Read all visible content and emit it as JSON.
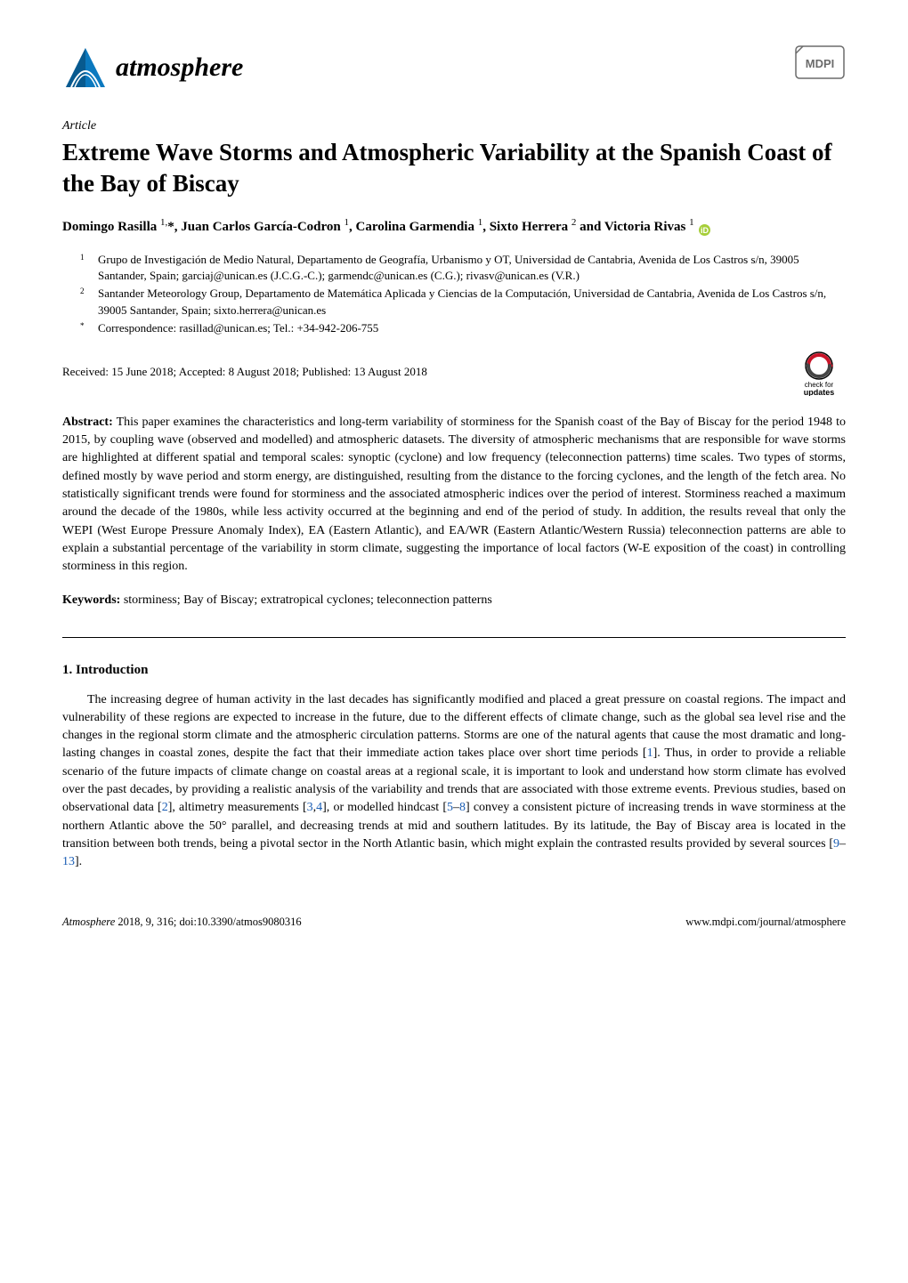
{
  "header": {
    "journal_name": "atmosphere",
    "logo_colors": {
      "blue": "#0b79bf",
      "dark": "#1a1a1a"
    },
    "mdpi_outline": "#6b6b6b"
  },
  "article": {
    "type": "Article",
    "title": "Extreme Wave Storms and Atmospheric Variability at the Spanish Coast of the Bay of Biscay",
    "authors_html": "Domingo Rasilla <sup>1,</sup>*, Juan Carlos García-Codron <sup>1</sup>, Carolina Garmendia <sup>1</sup>, Sixto Herrera <sup>2</sup> and Victoria Rivas <sup>1</sup>",
    "orcid_color": "#a6ce39",
    "affiliations": [
      {
        "num": "1",
        "text": "Grupo de Investigación de Medio Natural, Departamento de Geografía, Urbanismo y OT, Universidad de Cantabria, Avenida de Los Castros s/n, 39005 Santander, Spain; garciaj@unican.es (J.C.G.-C.); garmendc@unican.es (C.G.); rivasv@unican.es (V.R.)"
      },
      {
        "num": "2",
        "text": "Santander Meteorology Group, Departamento de Matemática Aplicada y Ciencias de la Computación, Universidad de Cantabria, Avenida de Los Castros s/n, 39005 Santander, Spain; sixto.herrera@unican.es"
      },
      {
        "num": "*",
        "text": "Correspondence: rasillad@unican.es; Tel.: +34-942-206-755"
      }
    ],
    "dates": "Received: 15 June 2018; Accepted: 8 August 2018; Published: 13 August 2018",
    "updates_badge": {
      "red": "#c81428",
      "text1": "check for",
      "text2": "updates"
    }
  },
  "abstract": {
    "label": "Abstract:",
    "text": " This paper examines the characteristics and long-term variability of storminess for the Spanish coast of the Bay of Biscay for the period 1948 to 2015, by coupling wave (observed and modelled) and atmospheric datasets. The diversity of atmospheric mechanisms that are responsible for wave storms are highlighted at different spatial and temporal scales: synoptic (cyclone) and low frequency (teleconnection patterns) time scales. Two types of storms, defined mostly by wave period and storm energy, are distinguished, resulting from the distance to the forcing cyclones, and the length of the fetch area. No statistically significant trends were found for storminess and the associated atmospheric indices over the period of interest. Storminess reached a maximum around the decade of the 1980s, while less activity occurred at the beginning and end of the period of study. In addition, the results reveal that only the WEPI (West Europe Pressure Anomaly Index), EA (Eastern Atlantic), and EA/WR (Eastern Atlantic/Western Russia) teleconnection patterns are able to explain a substantial percentage of the variability in storm climate, suggesting the importance of local factors (W-E exposition of the coast) in controlling storminess in this region."
  },
  "keywords": {
    "label": "Keywords:",
    "text": " storminess; Bay of Biscay; extratropical cyclones; teleconnection patterns"
  },
  "section1": {
    "heading": "1. Introduction",
    "paragraph": "The increasing degree of human activity in the last decades has significantly modified and placed a great pressure on coastal regions. The impact and vulnerability of these regions are expected to increase in the future, due to the different effects of climate change, such as the global sea level rise and the changes in the regional storm climate and the atmospheric circulation patterns. Storms are one of the natural agents that cause the most dramatic and long-lasting changes in coastal zones, despite the fact that their immediate action takes place over short time periods [1]. Thus, in order to provide a reliable scenario of the future impacts of climate change on coastal areas at a regional scale, it is important to look and understand how storm climate has evolved over the past decades, by providing a realistic analysis of the variability and trends that are associated with those extreme events. Previous studies, based on observational data [2], altimetry measurements [3,4], or modelled hindcast [5–8] convey a consistent picture of increasing trends in wave storminess at the northern Atlantic above the 50° parallel, and decreasing trends at mid and southern latitudes. By its latitude, the Bay of Biscay area is located in the transition between both trends, being a pivotal sector in the North Atlantic basin, which might explain the contrasted results provided by several sources [9–13].",
    "ref_color": "#1a5db4",
    "refs": [
      "1",
      "2",
      "3",
      "4",
      "5",
      "8",
      "9",
      "13"
    ]
  },
  "footer": {
    "left": "Atmosphere 2018, 9, 316; doi:10.3390/atmos9080316",
    "right": "www.mdpi.com/journal/atmosphere"
  }
}
